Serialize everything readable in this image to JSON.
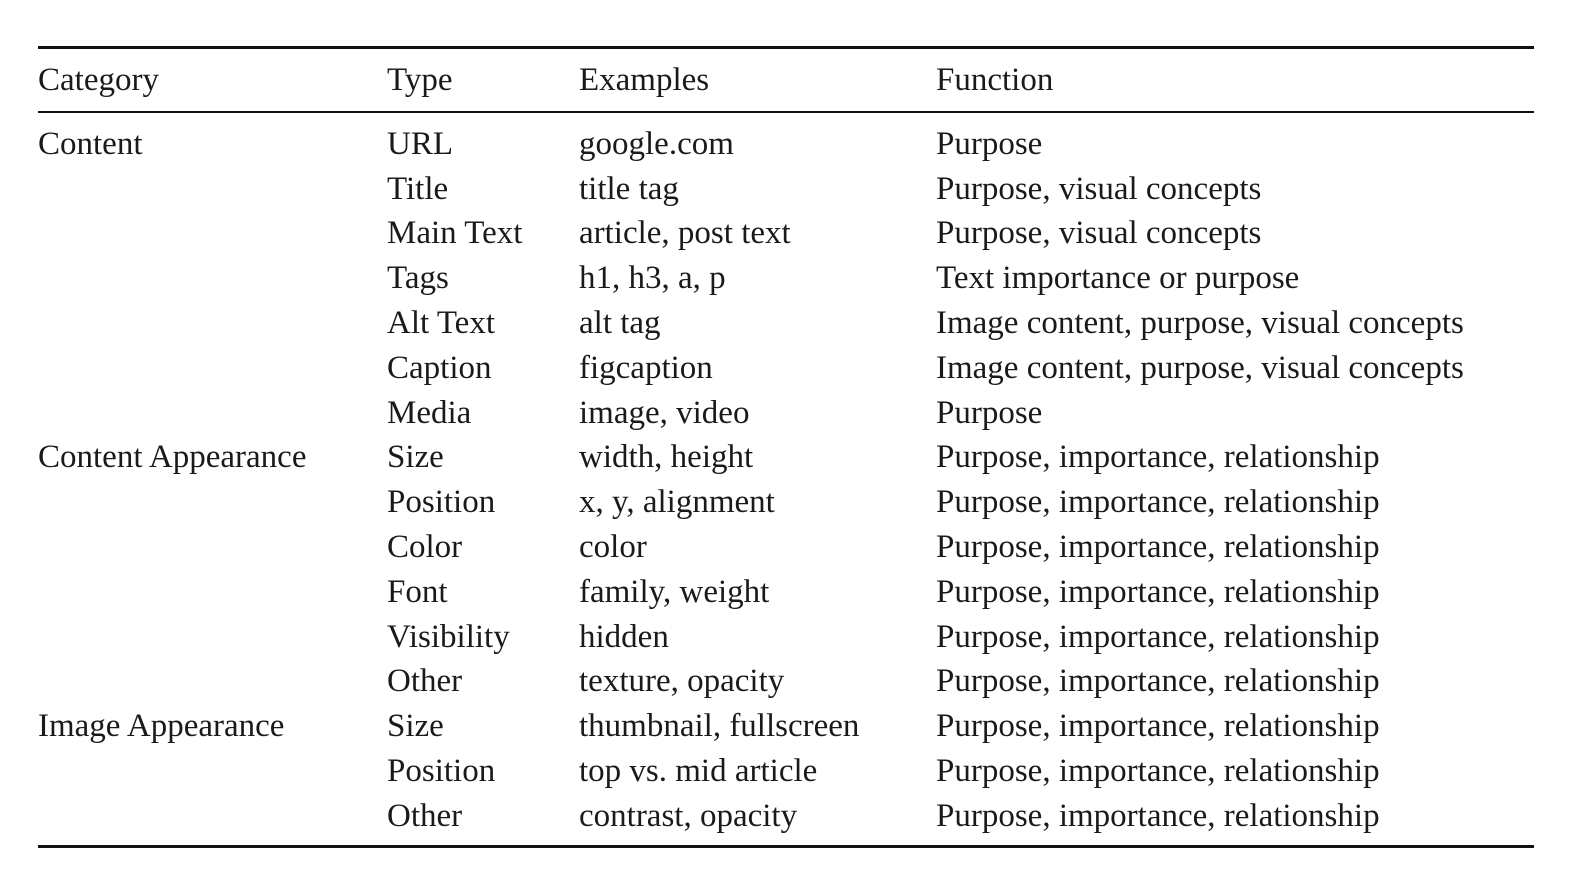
{
  "headers": [
    "Category",
    "Type",
    "Examples",
    "Function"
  ],
  "rows": [
    [
      "Content",
      "URL",
      "google.com",
      "Purpose"
    ],
    [
      "",
      "Title",
      "title tag",
      "Purpose, visual concepts"
    ],
    [
      "",
      "Main Text",
      "article, post text",
      "Purpose, visual concepts"
    ],
    [
      "",
      "Tags",
      "h1, h3, a, p",
      "Text importance or purpose"
    ],
    [
      "",
      "Alt Text",
      "alt tag",
      "Image content, purpose, visual concepts"
    ],
    [
      "",
      "Caption",
      "figcaption",
      "Image content, purpose, visual concepts"
    ],
    [
      "",
      "Media",
      "image, video",
      "Purpose"
    ],
    [
      "Content Appearance",
      "Size",
      "width, height",
      "Purpose, importance, relationship"
    ],
    [
      "",
      "Position",
      "x, y, alignment",
      "Purpose, importance, relationship"
    ],
    [
      "",
      "Color",
      "color",
      "Purpose, importance, relationship"
    ],
    [
      "",
      "Font",
      "family, weight",
      "Purpose, importance, relationship"
    ],
    [
      "",
      "Visibility",
      "hidden",
      "Purpose, importance, relationship"
    ],
    [
      "",
      "Other",
      "texture, opacity",
      "Purpose, importance, relationship"
    ],
    [
      "Image Appearance",
      "Size",
      "thumbnail, fullscreen",
      "Purpose, importance, relationship"
    ],
    [
      "",
      "Position",
      "top vs. mid article",
      "Purpose, importance, relationship"
    ],
    [
      "",
      "Other",
      "contrast, opacity",
      "Purpose, importance, relationship"
    ]
  ]
}
